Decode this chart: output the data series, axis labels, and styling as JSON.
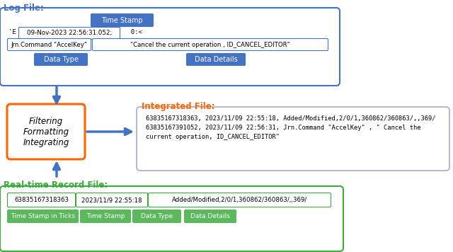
{
  "log_file_label": "Log File:",
  "log_file_label_color": "#4472C4",
  "log_box_color": "#4472C4",
  "log_timestamp_btn": "Time Stamp",
  "log_timestamp_btn_color": "#4472C4",
  "log_line1": "'E  09-Nov-2023 22:56:31.052;   0:<",
  "log_line1_box_text": "09-Nov-2023 22:56:31.052;",
  "log_line2_col1": "Jrn.Command \"AccelKey\"",
  "log_line2_col2": "\"Cancel the current operation , ID_CANCEL_EDITOR\"",
  "log_datatype_btn": "Data Type",
  "log_datatype_btn_color": "#4472C4",
  "log_datadetails_btn": "Data Details",
  "log_datadetails_btn_color": "#4472C4",
  "integrated_file_label": "Integrated File:",
  "integrated_file_label_color": "#FF6600",
  "integrated_text_line1": "63835167318363, 2023/11/09 22:55:18, Added/Modified,2/0/1,360862/360863/,,369/",
  "integrated_text_line2": "63835167391052, 2023/11/09 22:56:31, Jrn.Command \"AccelKey\" , \" Cancel the",
  "integrated_text_line3": "current operation, ID_CANCEL_EDITOR\"",
  "filter_box_label1": "Filtering",
  "filter_box_label2": "Formatting",
  "filter_box_label3": "Integrating",
  "filter_box_border_color": "#FF6600",
  "realtime_label": "Real-time Record File:",
  "realtime_label_color": "#3DAA3D",
  "realtime_box_color": "#3DAA3D",
  "realtime_data": "63835167318363, 2023/11/9 22:55:18  Added/Modified,2/0/1,360862/360863/,,369/",
  "realtime_btn1": "Time Stamp in Ticks",
  "realtime_btn2": "Time Stamp",
  "realtime_btn3": "Data Type",
  "realtime_btn4": "Data Details",
  "realtime_btn_color": "#5CB85C",
  "arrow_color": "#4472C4",
  "bg_color": "#FFFFFF"
}
